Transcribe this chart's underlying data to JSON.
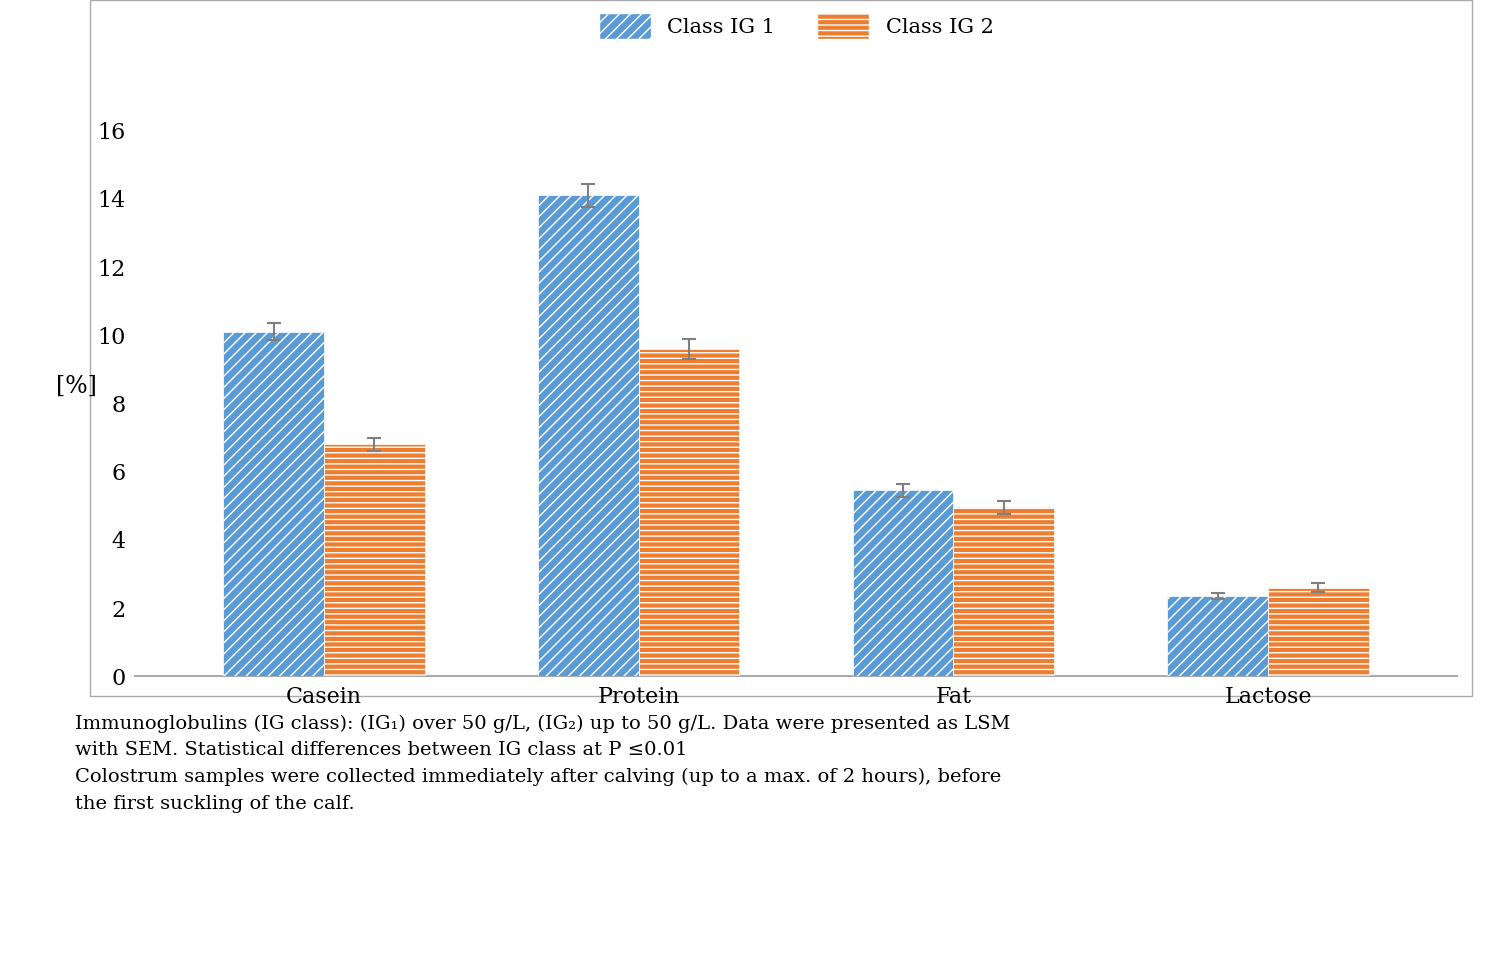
{
  "categories": [
    "Casein",
    "Protein",
    "Fat",
    "Lactose"
  ],
  "class1_values": [
    10.1,
    14.1,
    5.45,
    2.35
  ],
  "class2_values": [
    6.8,
    9.6,
    4.95,
    2.6
  ],
  "class1_errors": [
    0.25,
    0.35,
    0.2,
    0.1
  ],
  "class2_errors": [
    0.2,
    0.3,
    0.2,
    0.12
  ],
  "class1_color": "#5B9BD5",
  "class2_color": "#ED7D31",
  "class1_label": "Class IG 1",
  "class2_label": "Class IG 2",
  "ylabel": "[%]",
  "ylim": [
    0,
    17
  ],
  "yticks": [
    0,
    2,
    4,
    6,
    8,
    10,
    12,
    14,
    16
  ],
  "bar_width": 0.32,
  "hatch_class1": "///",
  "hatch_class2": "---",
  "error_color": "#7F7F7F",
  "footnote_line1": "Immunoglobulins (IG class): (IG₁) over 50 g/L, (IG₂) up to 50 g/L. Data were presented as LSM",
  "footnote_line2": "with SEM. Statistical differences between IG class at P ≤0.01",
  "footnote_line3": "Colostrum samples were collected immediately after calving (up to a max. of 2 hours), before",
  "footnote_line4": "the first suckling of the calf."
}
